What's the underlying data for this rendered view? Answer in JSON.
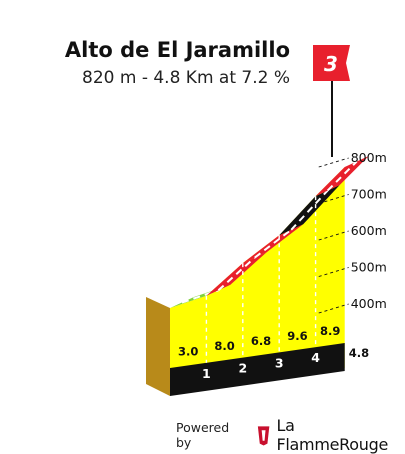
{
  "climb": {
    "name": "Alto de El Jaramillo",
    "summary": "820 m - 4.8 Km at 7.2 %",
    "category": "3"
  },
  "chart_data": {
    "type": "area",
    "title": "Alto de El Jaramillo",
    "subtitle": "820 m - 4.8 Km at 7.2 %",
    "x_unit": "km",
    "y_unit": "m",
    "ylim": [
      350,
      820
    ],
    "y_ticks": [
      "400m",
      "500m",
      "600m",
      "700m",
      "800m"
    ],
    "km_markers": [
      "1",
      "2",
      "3",
      "4"
    ],
    "total_distance_label": "4.8",
    "segments": [
      {
        "from_km": 0,
        "to_km": 1,
        "gradient": 3.0,
        "gradient_label": "3.0",
        "color": "#7fd13b"
      },
      {
        "from_km": 1,
        "to_km": 2,
        "gradient": 8.0,
        "gradient_label": "8.0",
        "color": "#e8202d"
      },
      {
        "from_km": 2,
        "to_km": 3,
        "gradient": 6.8,
        "gradient_label": "6.8",
        "color": "#e8202d"
      },
      {
        "from_km": 3,
        "to_km": 4,
        "gradient": 9.6,
        "gradient_label": "9.6",
        "color": "#111111"
      },
      {
        "from_km": 4,
        "to_km": 4.8,
        "gradient": 8.9,
        "gradient_label": "8.9",
        "color": "#e8202d"
      }
    ],
    "colors": {
      "face": "#ffff00",
      "side": "#b88a1a",
      "base": "#111111",
      "flag": "#e8202d"
    }
  },
  "footer": {
    "powered_label": "Powered by",
    "brand_name": "La FlammeRouge"
  }
}
